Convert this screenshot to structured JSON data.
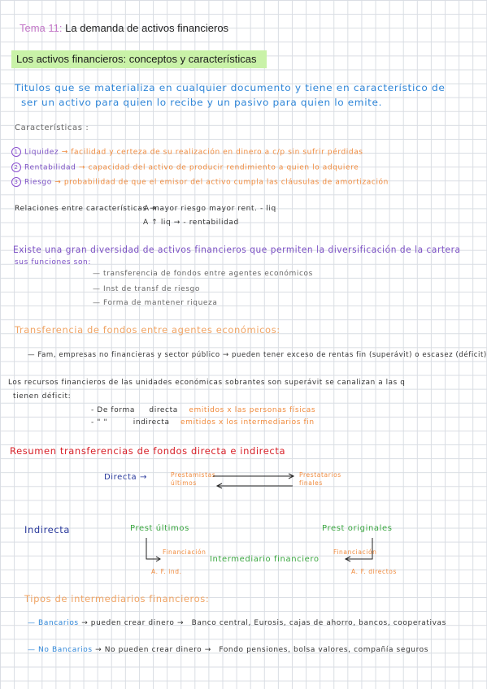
{
  "header": {
    "topic_num": "Tema 11:",
    "topic_title": "La demanda de activos financieros"
  },
  "section": {
    "title": "Los activos financieros: conceptos y características"
  },
  "intro": {
    "line1": "Titulos que se materializa en cualquier documento y tiene en característico de",
    "line2": "ser un activo para quien lo recibe y un pasivo para quien lo emite."
  },
  "caracteristicas": {
    "heading": "Características :",
    "items": [
      {
        "num": "1",
        "label": "Liquidez",
        "text": "→ facilidad y certeza de su realización en dinero a c/p sin sufrir pérdidas"
      },
      {
        "num": "2",
        "label": "Rentabilidad",
        "text": "→ capacidad del activo de producir rendimiento a quien lo adquiere"
      },
      {
        "num": "3",
        "label": "Riesgo",
        "text": "→ probabilidad de que el emisor del activo cumpla las cláusulas de amortización"
      }
    ],
    "relaciones": "Relaciones entre características →",
    "rel1": "· A mayor riesgo mayor rent. - liq",
    "rel2": "A ↑ liq → - rentabilidad"
  },
  "diversidad": {
    "line1": "Existe una gran diversidad de activos financieros que permiten la diversificación de la cartera",
    "line2": "sus funciones son:",
    "list": [
      "— transferencia de fondos entre agentes económicos",
      "— Inst de transf de riesgo",
      "— Forma de mantener riqueza"
    ]
  },
  "transferencia": {
    "heading": "Transferencia de fondos entre agentes económicos:",
    "bullet": "— Fam, empresas no financieras y sector público → pueden tener exceso de rentas fin (superávit) o escasez (déficit)",
    "line2": "Los recursos financieros de las unidades económicas sobrantes son superávit se canalizan a las q",
    "line3": "tienen déficit:",
    "forma1a": "- De forma",
    "forma1b": "directa",
    "forma1c": "emitidos x las personas físicas",
    "forma2a": "- \" \"",
    "forma2b": "indirecta",
    "forma2c": "emitidos x los intermediarios fin"
  },
  "resumen": {
    "heading": "Resumen transferencias de fondos directa e indirecta",
    "directa": "Directa →",
    "prest_ultimos": "Prestamistas últimos",
    "prestatarios": "Prestatarios finales",
    "indirecta": "Indirecta",
    "prest_ult2": "Prest últimos",
    "prest_orig": "Prest originales",
    "financiacion1": "Financiación",
    "intermediario": "Intermediario financiero",
    "financiacion2": "Financiación",
    "af1": "A. F. ind.",
    "af2": "A. F. directos"
  },
  "tipos": {
    "heading": "Tipos de intermediarios financieros:",
    "bancarios_label": "— Bancarios",
    "bancarios_text": "→ pueden crear dinero →",
    "bancarios_list": "Banco central, Eurosis, cajas de ahorro, bancos, cooperativas",
    "nobancarios_label": "— No Bancarios",
    "nobancarios_text": "→ No pueden crear dinero →",
    "nobancarios_list": "Fondo pensiones, bolsa valores, compañía seguros"
  }
}
